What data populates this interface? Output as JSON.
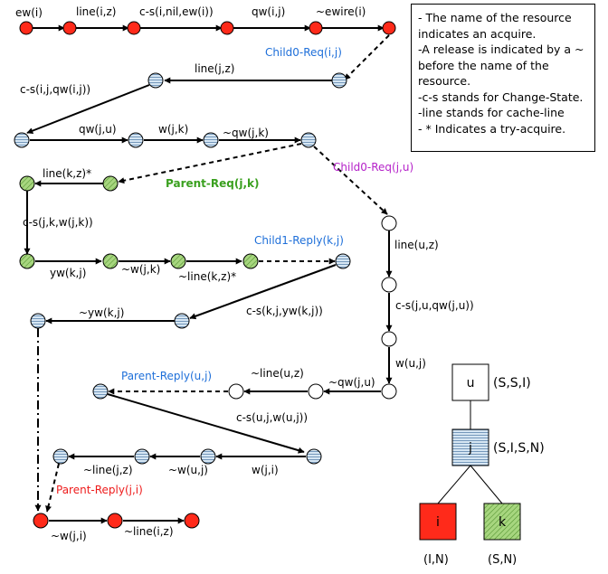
{
  "legend": {
    "lines": [
      "- The name of the resource",
      "indicates an acquire.",
      "-A release is indicated by a ~",
      "before the name of the",
      "resource.",
      "-c-s stands for Change-State.",
      "-line stands for cache-line",
      "- * Indicates a try-acquire."
    ]
  },
  "colors": {
    "red": "#ff2a1a",
    "blue_hatch": "#b7d0e6",
    "green_hatch": "#9fd07a",
    "white": "#ffffff",
    "blue_text": "#1e6fd9",
    "green_text": "#3aa01f",
    "purple_text": "#b522c9",
    "red_text": "#ee1c1c"
  },
  "labels": {
    "ew_i": "ew(i)",
    "line_iz": "line(i,z)",
    "cs_i_nil": "c-s(i,nil,ew(i))",
    "qw_ij": "qw(i,j)",
    "rel_ewire_i": "~ewire(i)",
    "child0_req_ij": "Child0-Req(i,j)",
    "line_jz": "line(j,z)",
    "cs_ij_qw": "c-s(i,j,qw(i,j))",
    "qw_ju": "qw(j,u)",
    "w_jk": "w(j,k)",
    "rel_qw_jk": "~qw(j,k)",
    "line_kz_try": "line(k,z)*",
    "parent_req_jk": "Parent-Req(j,k)",
    "child0_req_ju": "Child0-Req(j,u)",
    "cs_jk_w": "c-s(j,k,w(j,k))",
    "line_uz": "line(u,z)",
    "yw_kj": "yw(k,j)",
    "rel_w_jk": "~w(j,k)",
    "rel_line_kz_try": "~line(k,z)*",
    "child1_reply_kj": "Child1-Reply(k,j)",
    "cs_ju_qw": "c-s(j,u,qw(j,u))",
    "rel_yw_kj": "~yw(k,j)",
    "cs_kj_yw": "c-s(k,j,yw(k,j))",
    "w_uj": "w(u,j)",
    "parent_reply_uj": "Parent-Reply(u,j)",
    "rel_line_uz": "~line(u,z)",
    "rel_qw_ju": "~qw(j,u)",
    "cs_uj_w": "c-s(u,j,w(u,j))",
    "rel_line_jz": "~line(j,z)",
    "rel_w_uj": "~w(u,j)",
    "w_ji": "w(j,i)",
    "parent_reply_ji": "Parent-Reply(j,i)",
    "rel_w_ji": "~w(j,i)",
    "rel_line_iz": "~line(i,z)"
  },
  "tree": {
    "u": {
      "name": "u",
      "state": "(S,S,I)"
    },
    "j": {
      "name": "j",
      "state": "(S,I,S,N)"
    },
    "i": {
      "name": "i",
      "state": "(I,N)"
    },
    "k": {
      "name": "k",
      "state": "(S,N)"
    }
  }
}
